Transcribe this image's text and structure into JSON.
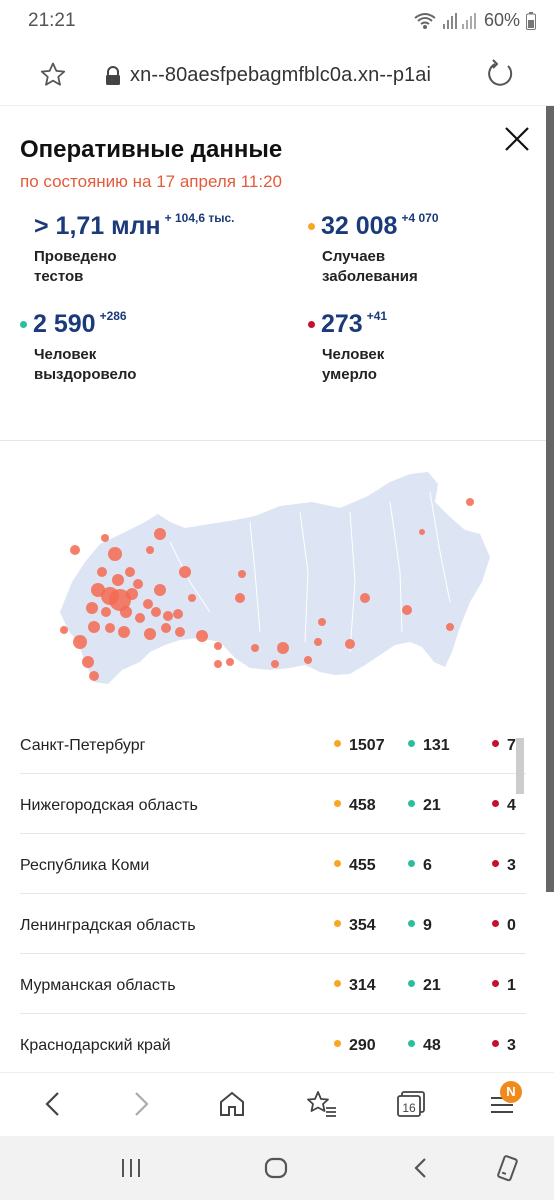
{
  "status_bar": {
    "time": "21:21",
    "battery": "60%"
  },
  "address_bar": {
    "url": "xn--80aesfpebagmfblc0a.xn--p1ai"
  },
  "panel": {
    "title": "Оперативные данные",
    "subtitle": "по состоянию на 17 апреля 11:20",
    "stats": [
      {
        "value": "> 1,71 млн",
        "delta": "+ 104,6 тыс.",
        "label": "Проведено тестов",
        "dot": ""
      },
      {
        "value": "32 008",
        "delta": "+4 070",
        "label": "Случаев заболевания",
        "dot": "#f5a623"
      },
      {
        "value": "2 590",
        "delta": "+286",
        "label": "Человек выздоровело",
        "dot": "#2bbf9e"
      },
      {
        "value": "273",
        "delta": "+41",
        "label": "Человек умерло",
        "dot": "#c8102e"
      }
    ]
  },
  "colors": {
    "cases": "#f5a623",
    "recovered": "#2bbf9e",
    "deaths": "#c8102e",
    "accent": "#e55a3a",
    "navy": "#1b3a7a",
    "map_land": "#dde4f3",
    "map_dot": "#f36a50"
  },
  "table": {
    "rows": [
      {
        "region": "Санкт-Петербург",
        "cases": "1507",
        "recovered": "131",
        "deaths": "7"
      },
      {
        "region": "Нижегородская область",
        "cases": "458",
        "recovered": "21",
        "deaths": "4"
      },
      {
        "region": "Республика Коми",
        "cases": "455",
        "recovered": "6",
        "deaths": "3"
      },
      {
        "region": "Ленинградская область",
        "cases": "354",
        "recovered": "9",
        "deaths": "0"
      },
      {
        "region": "Мурманская область",
        "cases": "314",
        "recovered": "21",
        "deaths": "1"
      },
      {
        "region": "Краснодарский край",
        "cases": "290",
        "recovered": "48",
        "deaths": "3"
      }
    ]
  },
  "toolbar": {
    "tabs_count": "16",
    "menu_badge": "N"
  },
  "icons": [
    "star-icon",
    "lock-icon",
    "reload-icon",
    "close-icon",
    "back-icon",
    "forward-icon",
    "home-icon",
    "bookmarks-icon",
    "tabs-icon",
    "menu-icon",
    "recents-icon",
    "home-button-icon",
    "sys-back-icon",
    "rotate-icon",
    "wifi-icon",
    "signal-icon",
    "battery-icon"
  ]
}
